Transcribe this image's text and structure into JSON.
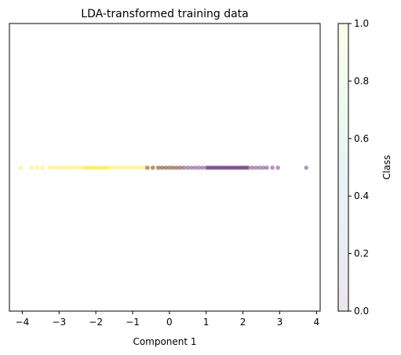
{
  "chart_data": {
    "type": "scatter",
    "title": "LDA-transformed training data",
    "xlabel": "Component 1",
    "ylabel": "",
    "xlim": [
      -4.35,
      4.1
    ],
    "xticks": [
      -4,
      -3,
      -2,
      -1,
      0,
      1,
      2,
      3,
      4
    ],
    "y_value": 0,
    "y_ticks_visible": false,
    "point_alpha": 0.4,
    "colormap": "viridis",
    "colorbar": {
      "label": "Class",
      "range": [
        0.0,
        1.0
      ],
      "ticks": [
        "0.0",
        "0.2",
        "0.4",
        "0.6",
        "0.8",
        "1.0"
      ],
      "alpha": 0.1
    },
    "class_colors": {
      "0": "#440154",
      "1": "#fde725"
    },
    "series": [
      {
        "class": 1,
        "x": [
          -4.05,
          -3.75,
          -3.6,
          -3.45,
          -3.25,
          -3.15,
          -3.05,
          -2.95,
          -2.85,
          -2.75,
          -2.65,
          -2.55,
          -2.45,
          -2.35,
          -2.3,
          -2.25,
          -2.2,
          -2.15,
          -2.1,
          -2.05,
          -2.0,
          -1.95,
          -1.9,
          -1.85,
          -1.8,
          -1.75,
          -1.7,
          -1.65,
          -1.55,
          -1.45,
          -1.35,
          -1.25,
          -1.15,
          -1.05,
          -0.95,
          -0.85,
          -0.75,
          -0.65,
          -0.55,
          -0.45,
          -0.35,
          -0.25,
          -0.15,
          -0.05,
          0.05,
          0.15,
          0.25,
          0.35
        ]
      },
      {
        "class": 0,
        "x": [
          -0.6,
          -0.45,
          -0.3,
          -0.2,
          -0.1,
          0.0,
          0.1,
          0.2,
          0.3,
          0.4,
          0.5,
          0.6,
          0.7,
          0.8,
          0.9,
          1.0,
          1.05,
          1.1,
          1.15,
          1.2,
          1.25,
          1.3,
          1.35,
          1.4,
          1.45,
          1.5,
          1.55,
          1.6,
          1.65,
          1.7,
          1.75,
          1.8,
          1.85,
          1.9,
          1.95,
          2.0,
          2.05,
          2.1,
          2.15,
          2.25,
          2.35,
          2.45,
          2.55,
          2.65,
          2.8,
          2.95,
          3.72
        ]
      }
    ]
  }
}
